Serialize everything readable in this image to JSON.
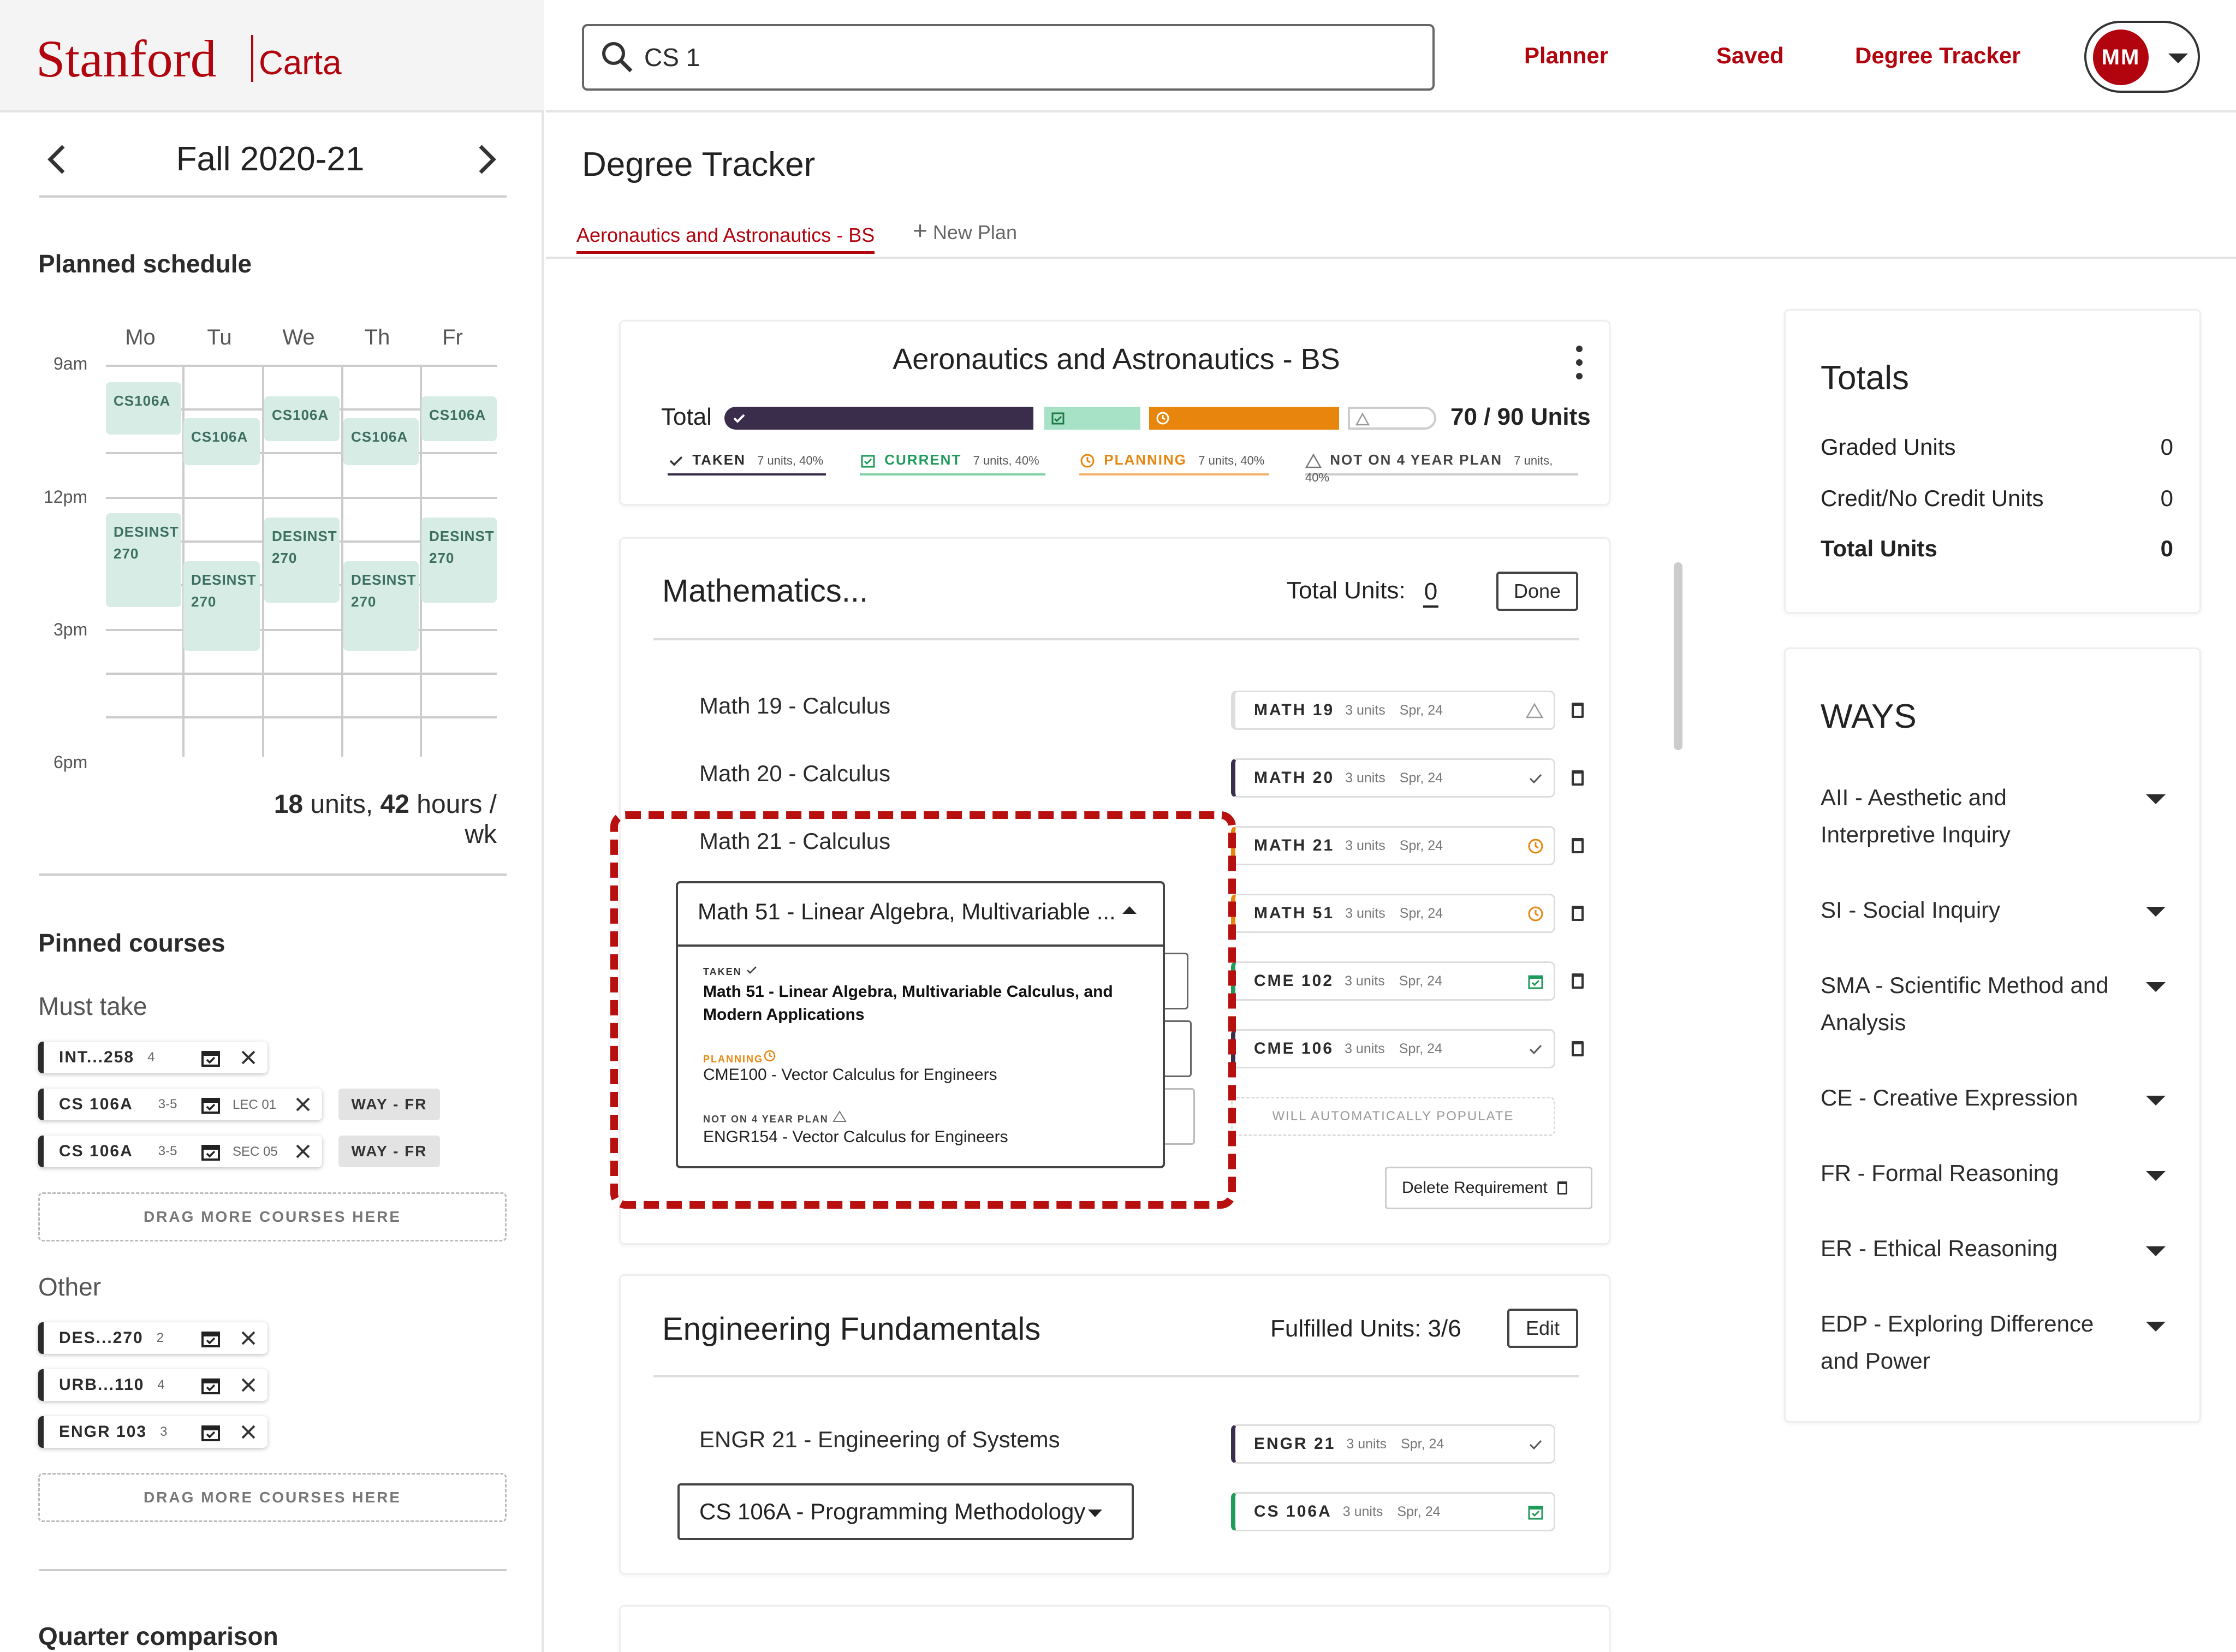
{
  "brand": {
    "name": "Stanford",
    "product": "Carta"
  },
  "search": {
    "value": "CS 1"
  },
  "nav": {
    "planner": "Planner",
    "saved": "Saved",
    "tracker": "Degree Tracker",
    "avatar": "MM"
  },
  "sidebar": {
    "quarter": "Fall 2020-21",
    "schedule_title": "Planned schedule",
    "days": [
      "Mo",
      "Tu",
      "We",
      "Th",
      "Fr"
    ],
    "times": [
      "9am",
      "12pm",
      "3pm",
      "6pm"
    ],
    "blocks": {
      "mo1": "CS106A",
      "tu1": "CS106A",
      "we1": "CS106A",
      "th1": "CS106A",
      "fr1": "CS106A",
      "mo2": "DESINST 270",
      "tu2": "DESINST 270",
      "we2": "DESINST 270",
      "th2": "DESINST 270",
      "fr2": "DESINST 270"
    },
    "summary": {
      "units_num": "18",
      "units_label": "units,",
      "hours_num": "42",
      "hours_label": "hours / wk"
    },
    "pinned_title": "Pinned courses",
    "must_take_label": "Must take",
    "must_take": [
      {
        "code": "INT...258",
        "units": "4",
        "section": ""
      },
      {
        "code": "CS 106A",
        "units": "3-5",
        "section": "LEC 01",
        "way": "WAY - FR"
      },
      {
        "code": "CS 106A",
        "units": "3-5",
        "section": "SEC 05",
        "way": "WAY - FR"
      }
    ],
    "dropzone": "DRAG MORE COURSES HERE",
    "other_label": "Other",
    "other": [
      {
        "code": "DES...270",
        "units": "2"
      },
      {
        "code": "URB...110",
        "units": "4"
      },
      {
        "code": "ENGR 103",
        "units": "3"
      }
    ],
    "comparison_title": "Quarter comparison"
  },
  "main": {
    "title": "Degree Tracker",
    "tabs": {
      "active": "Aeronautics and Astronautics - BS",
      "new": "New Plan"
    },
    "program": {
      "title": "Aeronautics and Astronautics - BS",
      "total_label": "Total",
      "units": "70 / 90 Units",
      "legend": [
        {
          "label": "TAKEN",
          "detail": "7 units, 40%",
          "color": "#3a2d4b"
        },
        {
          "label": "CURRENT",
          "detail": "7 units, 40%",
          "color": "#1f9b5a"
        },
        {
          "label": "PLANNING",
          "detail": "7 units, 40%",
          "color": "#e8850c"
        },
        {
          "label": "NOT ON 4 YEAR PLAN",
          "detail": "7 units, 40%",
          "color": "#999999"
        }
      ]
    },
    "math": {
      "title": "Mathematics...",
      "total_label": "Total Units:",
      "total_value": "0",
      "done": "Done",
      "rows": [
        "Math 19  - Calculus",
        "Math 20  - Calculus",
        "Math 21  - Calculus"
      ],
      "dropdown_value": "Math 51 - Linear Algebra, Multivariable ...",
      "menu": {
        "taken_label": "TAKEN",
        "taken_course": "Math 51 - Linear Algebra, Multivariable Calculus, and Modern Applications",
        "planning_label": "PLANNING",
        "planning_course": "CME100 - Vector Calculus for Engineers",
        "not_label": "NOT ON 4 YEAR PLAN",
        "not_course": "ENGR154 - Vector Calculus for Engineers"
      },
      "chips": [
        {
          "code": "MATH 19",
          "units": "3 units",
          "term": "Spr, 24"
        },
        {
          "code": "MATH 20",
          "units": "3 units",
          "term": "Spr, 24"
        },
        {
          "code": "MATH 21",
          "units": "3 units",
          "term": "Spr, 24"
        },
        {
          "code": "MATH 51",
          "units": "3 units",
          "term": "Spr, 24"
        },
        {
          "code": "CME 102",
          "units": "3 units",
          "term": "Spr, 24"
        },
        {
          "code": "CME 106",
          "units": "3 units",
          "term": "Spr, 24"
        }
      ],
      "auto_populate": "WILL AUTOMATICALLY POPULATE",
      "delete": "Delete Requirement"
    },
    "eng": {
      "title": "Engineering Fundamentals",
      "fulfilled": "Fulfilled Units: 3/6",
      "edit": "Edit",
      "row1": "ENGR 21 - Engineering of Systems",
      "dropdown_value": "CS 106A - Programming Methodology",
      "chips": [
        {
          "code": "ENGR 21",
          "units": "3 units",
          "term": "Spr, 24"
        },
        {
          "code": "CS 106A",
          "units": "3 units",
          "term": "Spr, 24"
        }
      ]
    }
  },
  "totals": {
    "title": "Totals",
    "rows": [
      {
        "label": "Graded Units",
        "value": "0"
      },
      {
        "label": "Credit/No Credit Units",
        "value": "0"
      },
      {
        "label": "Total Units",
        "value": "0"
      }
    ]
  },
  "ways": {
    "title": "WAYS",
    "items": [
      "AII - Aesthetic and Interpretive Inquiry",
      "SI - Social Inquiry",
      "SMA - Scientific Method and Analysis",
      "CE - Creative Expression",
      "FR - Formal Reasoning",
      "ER - Ethical Reasoning",
      "EDP - Exploring Difference and Power"
    ]
  }
}
